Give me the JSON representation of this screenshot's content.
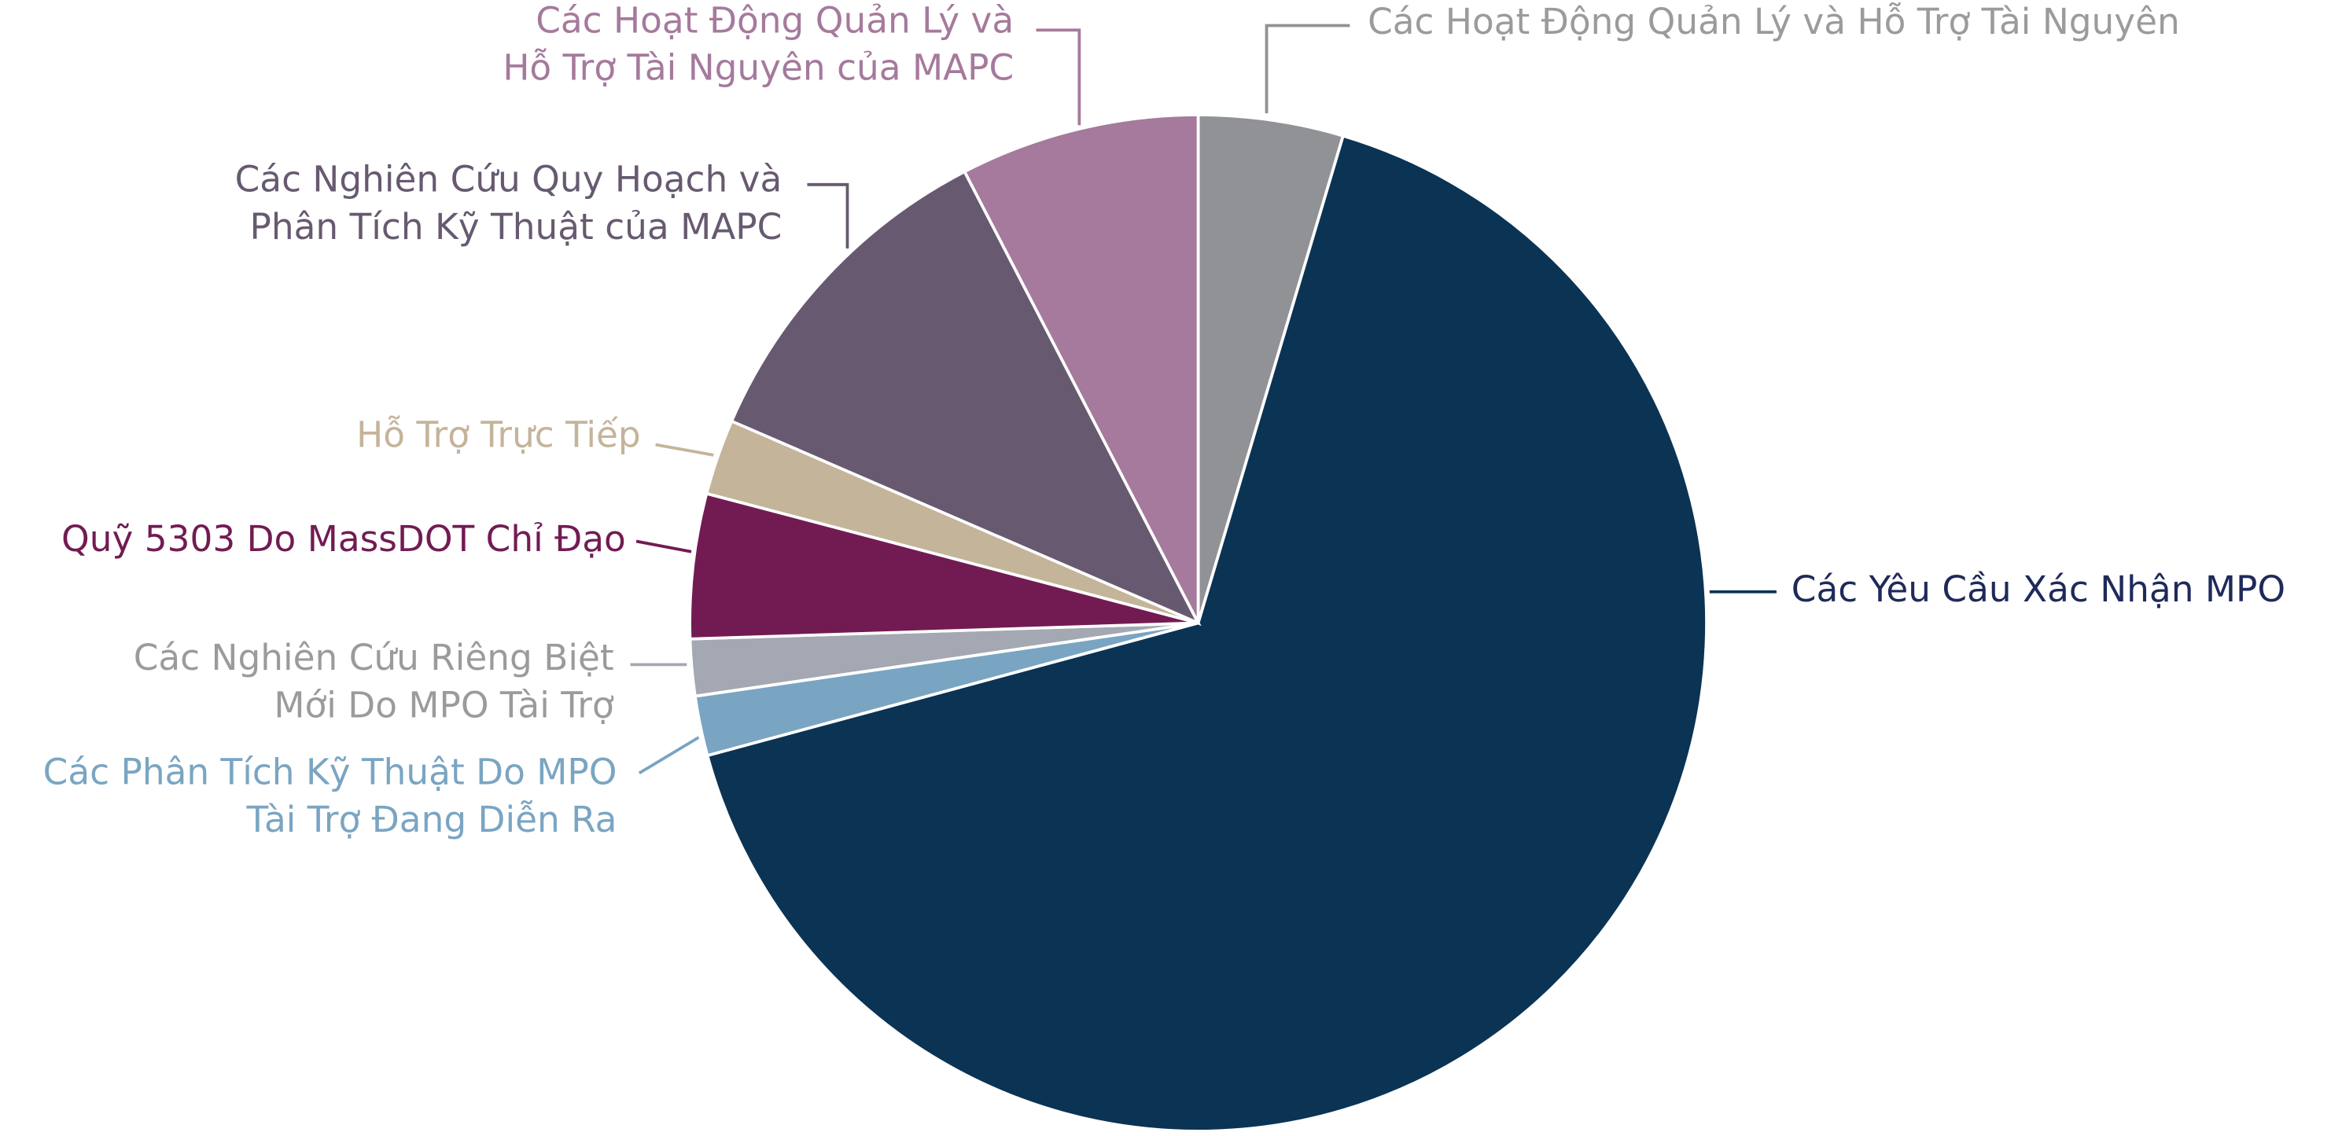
{
  "chart_data": {
    "type": "pie",
    "categories": [
      [
        "Các Hoạt Động Quản Lý và Hỗ Trợ Tài Nguyên"
      ],
      [
        "Các Yêu Cầu Xác Nhận MPO"
      ],
      [
        "Các Phân Tích Kỹ Thuật Do MPO",
        "Tài Trợ Đang Diễn Ra"
      ],
      [
        "Các Nghiên Cứu Riêng Biệt",
        "Mới Do MPO Tài Trợ"
      ],
      [
        "Quỹ 5303 Do MassDOT Chỉ Đạo"
      ],
      [
        "Hỗ Trợ Trực Tiếp"
      ],
      [
        "Các Nghiên Cứu Quy Hoạch và",
        "Phân Tích Kỹ Thuật của MAPC"
      ],
      [
        "Các Hoạt Động Quản Lý và",
        "Hỗ Trợ Tài Nguyên của MAPC"
      ]
    ],
    "values": [
      4.6,
      66.2,
      1.9,
      1.8,
      4.6,
      2.4,
      10.9,
      7.6
    ],
    "colors": [
      "#919296",
      "#0b3354",
      "#7aa5c2",
      "#a4a8b2",
      "#721b52",
      "#c4b49a",
      "#675a70",
      "#a57a9c"
    ]
  }
}
